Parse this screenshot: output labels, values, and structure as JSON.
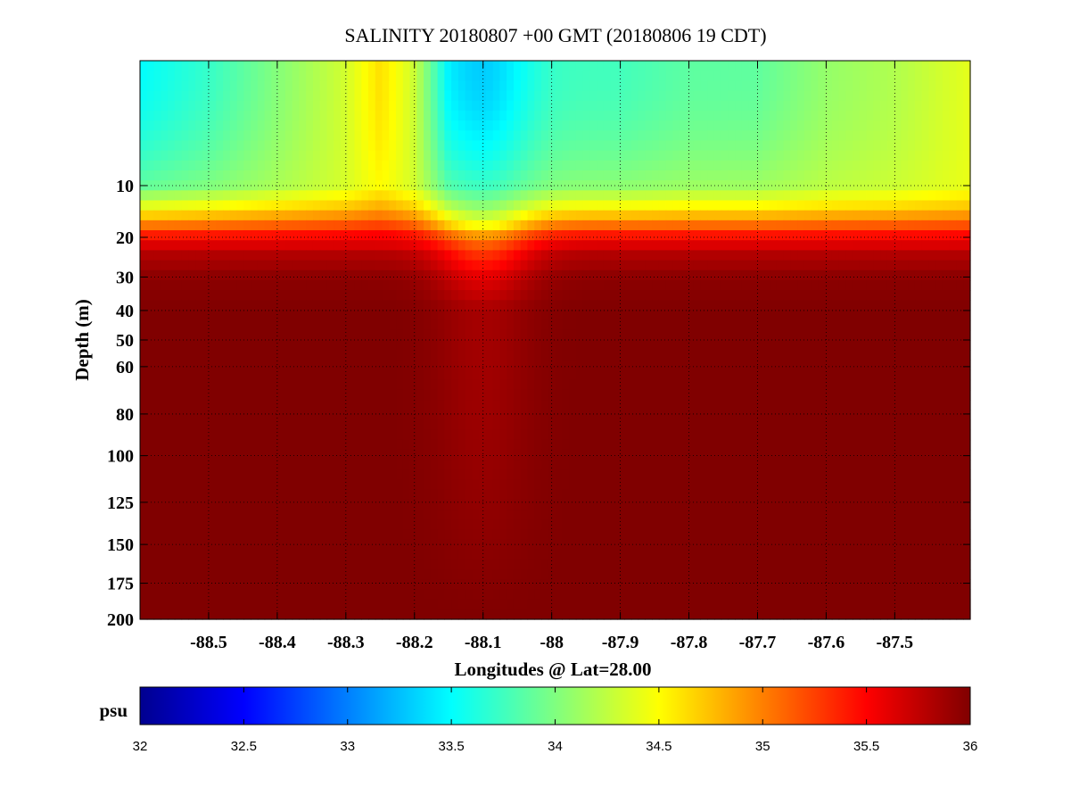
{
  "chart_data": {
    "type": "heatmap",
    "title": "SALINITY 20180807 +00 GMT (20180806 19 CDT)",
    "xlabel": "Longitudes @ Lat=28.00",
    "ylabel": "Depth (m)",
    "x_ticks": [
      -88.5,
      -88.4,
      -88.3,
      -88.2,
      -88.1,
      -88,
      -87.9,
      -87.8,
      -87.7,
      -87.6,
      -87.5
    ],
    "x_tick_labels": [
      "-88.5",
      "-88.4",
      "-88.3",
      "-88.2",
      "-88.1",
      "-88",
      "-87.9",
      "-87.8",
      "-87.7",
      "-87.6",
      "-87.5"
    ],
    "xlim": [
      -88.6,
      -87.39
    ],
    "y_ticks": [
      10,
      20,
      30,
      40,
      50,
      60,
      80,
      100,
      125,
      150,
      175,
      200
    ],
    "y_tick_labels": [
      "10",
      "20",
      "30",
      "40",
      "50",
      "60",
      "80",
      "100",
      "125",
      "150",
      "175",
      "200"
    ],
    "ylim": [
      0,
      200
    ],
    "y_scale": "sqrt",
    "y_reversed": true,
    "grid": true,
    "colorbar": {
      "label": "psu",
      "range": [
        32,
        36
      ],
      "ticks": [
        "32",
        "32.5",
        "33",
        "33.5",
        "34",
        "34.5",
        "35",
        "35.5",
        "36"
      ],
      "colormap": "jet",
      "orientation": "horizontal"
    },
    "depth_profile": {
      "depths": [
        0,
        10,
        14,
        18,
        20,
        24,
        30,
        40,
        200
      ],
      "west": [
        33.9,
        34.1,
        34.6,
        35.2,
        35.5,
        35.8,
        35.95,
        36.0,
        36.0
      ],
      "near_-88.1": [
        33.6,
        33.9,
        34.2,
        34.6,
        35.0,
        35.3,
        35.6,
        35.85,
        36.0
      ],
      "east": [
        34.0,
        34.2,
        34.6,
        35.2,
        35.5,
        35.8,
        35.95,
        36.0,
        36.0
      ]
    },
    "surface_salinity": {
      "lon": [
        -88.6,
        -88.5,
        -88.4,
        -88.3,
        -88.25,
        -88.2,
        -88.15,
        -88.1,
        -88.0,
        -87.9,
        -87.8,
        -87.7,
        -87.6,
        -87.5,
        -87.39
      ],
      "values": [
        33.5,
        33.7,
        34.0,
        34.3,
        34.6,
        34.3,
        33.6,
        33.6,
        33.7,
        33.7,
        33.8,
        33.8,
        34.0,
        34.1,
        34.3
      ]
    }
  }
}
